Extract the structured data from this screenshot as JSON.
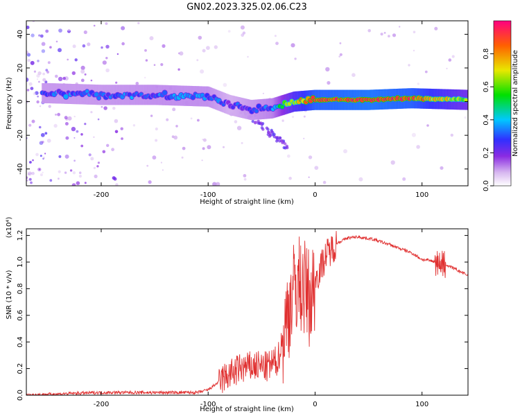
{
  "title": "GN02.2023.325.02.06.C23",
  "chart_data": [
    {
      "type": "heatmap",
      "xlabel": "Height of straight line (km)",
      "ylabel": "Frequency (Hz)",
      "xlim": [
        -270,
        143
      ],
      "ylim": [
        -50,
        48
      ],
      "xticks": [
        -200,
        -100,
        0,
        100
      ],
      "yticks": [
        -40,
        -20,
        0,
        20,
        40
      ],
      "colorbar": {
        "label": "Normalized spectral amplitude",
        "range": [
          0,
          1
        ],
        "ticks": [
          "0.0",
          "0.2",
          "0.4",
          "0.6",
          "0.8"
        ]
      },
      "ridge": [
        {
          "x": -250,
          "f": 5,
          "amp": 0.3
        },
        {
          "x": -200,
          "f": 4,
          "amp": 0.3
        },
        {
          "x": -150,
          "f": 4,
          "amp": 0.32
        },
        {
          "x": -100,
          "f": 3,
          "amp": 0.32
        },
        {
          "x": -80,
          "f": -2,
          "amp": 0.25
        },
        {
          "x": -60,
          "f": -5,
          "amp": 0.3
        },
        {
          "x": -40,
          "f": -4,
          "amp": 0.35
        },
        {
          "x": -20,
          "f": 0,
          "amp": 0.7
        },
        {
          "x": 0,
          "f": 1,
          "amp": 0.9
        },
        {
          "x": 50,
          "f": 1,
          "amp": 0.95
        },
        {
          "x": 90,
          "f": 2,
          "amp": 0.9
        },
        {
          "x": 143,
          "f": 1,
          "amp": 0.6
        }
      ]
    },
    {
      "type": "line",
      "xlabel": "Height of straight line (km)",
      "ylabel": "SNR (10 * v/v)",
      "y_multiplier": "(x10⁴)",
      "xlim": [
        -270,
        143
      ],
      "ylim": [
        0,
        1.25
      ],
      "xticks": [
        -200,
        -100,
        0,
        100
      ],
      "yticks": [
        "0.0",
        "0.2",
        "0.4",
        "0.6",
        "0.8",
        "1.0",
        "1.2"
      ],
      "color": "#e03030",
      "x": [
        -270,
        -240,
        -200,
        -150,
        -110,
        -100,
        -85,
        -70,
        -55,
        -45,
        -35,
        -28,
        -22,
        -16,
        -10,
        -4,
        0,
        10,
        20,
        30,
        40,
        55,
        70,
        90,
        100,
        115,
        125,
        143
      ],
      "y": [
        0.0,
        0.01,
        0.02,
        0.02,
        0.02,
        0.04,
        0.13,
        0.2,
        0.22,
        0.21,
        0.26,
        0.5,
        0.75,
        0.85,
        0.8,
        0.72,
        0.86,
        1.05,
        1.14,
        1.18,
        1.19,
        1.17,
        1.13,
        1.07,
        1.02,
        1.0,
        0.97,
        0.9
      ]
    }
  ]
}
